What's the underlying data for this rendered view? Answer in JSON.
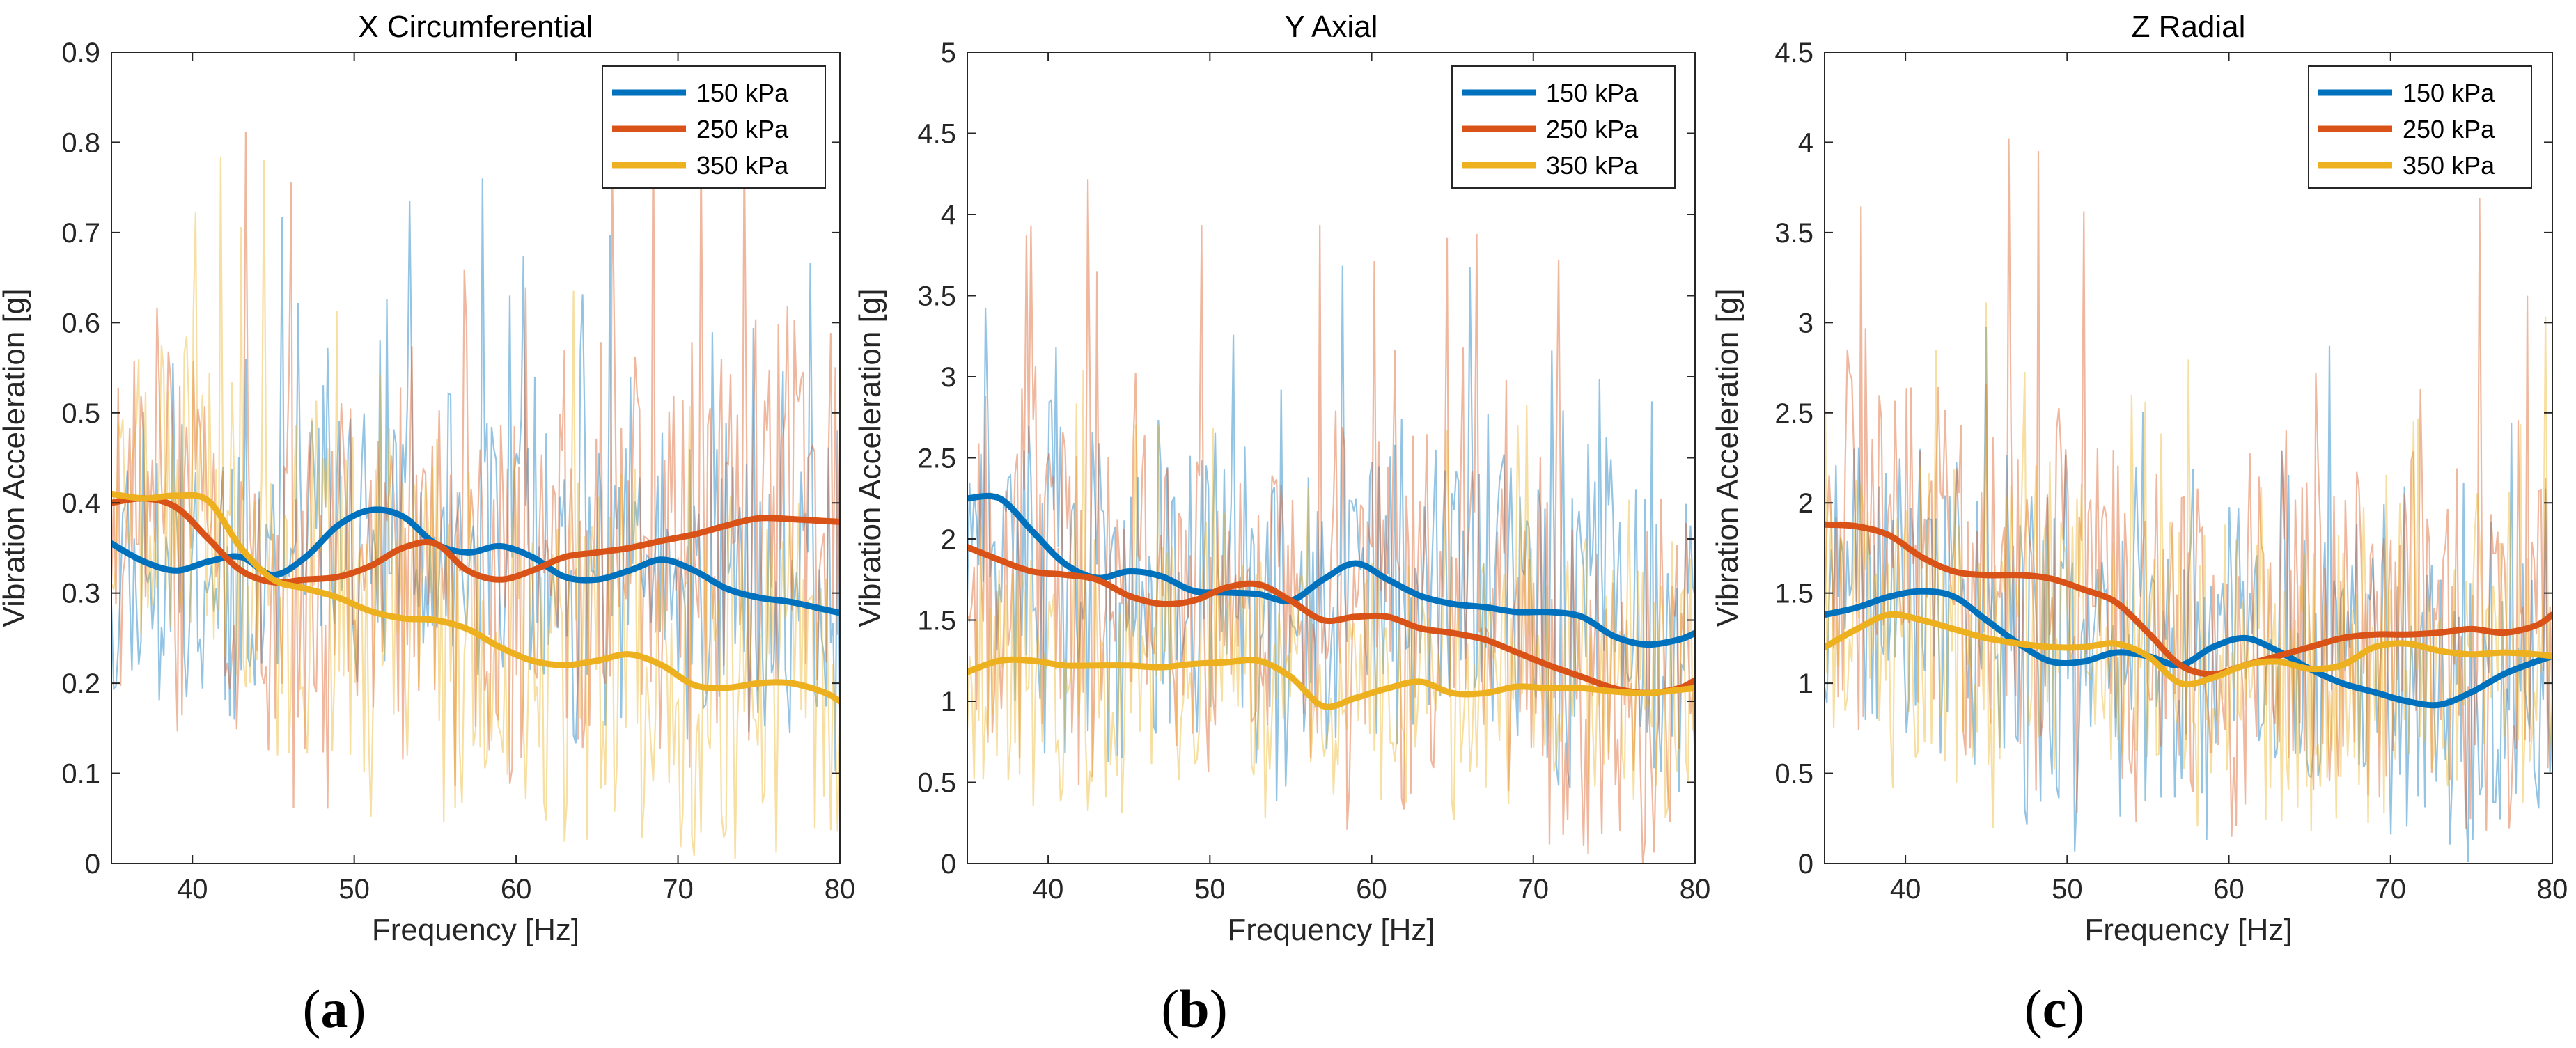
{
  "figure": {
    "panel_labels": [
      "(a)",
      "(b)",
      "(c)"
    ]
  },
  "colors": {
    "s150": "#0072BD",
    "s250": "#D95319",
    "s350": "#EDB120",
    "axis": "#262626",
    "tick_text": "#262626"
  },
  "chart_data": [
    {
      "type": "line",
      "title": "X Circumferential",
      "xlabel": "Frequency [Hz]",
      "ylabel": "Vibration Acceleration [g]",
      "xlim": [
        35,
        80
      ],
      "ylim": [
        0,
        0.9
      ],
      "xticks": [
        40,
        50,
        60,
        70,
        80
      ],
      "yticks": [
        0,
        0.1,
        0.2,
        0.3,
        0.4,
        0.5,
        0.6,
        0.7,
        0.8,
        0.9
      ],
      "ytick_labels": [
        "0",
        "0.1",
        "0.2",
        "0.3",
        "0.4",
        "0.5",
        "0.6",
        "0.7",
        "0.8",
        "0.9"
      ],
      "legend_position": "top-right",
      "smooth_x": [
        35,
        37,
        39,
        41,
        43,
        45,
        47,
        49,
        51,
        53,
        55,
        57,
        59,
        61,
        63,
        65,
        67,
        69,
        71,
        73,
        75,
        77,
        79,
        80
      ],
      "series": [
        {
          "name": "150 kPa",
          "color_key": "s150",
          "smooth": [
            0.355,
            0.335,
            0.325,
            0.335,
            0.34,
            0.32,
            0.34,
            0.375,
            0.392,
            0.385,
            0.355,
            0.345,
            0.352,
            0.34,
            0.318,
            0.315,
            0.325,
            0.337,
            0.325,
            0.305,
            0.295,
            0.29,
            0.282,
            0.278
          ],
          "raw_amp": 0.16,
          "raw_seed": 11
        },
        {
          "name": "250 kPa",
          "color_key": "s250",
          "smooth": [
            0.4,
            0.405,
            0.395,
            0.36,
            0.325,
            0.312,
            0.315,
            0.318,
            0.33,
            0.35,
            0.355,
            0.325,
            0.315,
            0.325,
            0.34,
            0.345,
            0.35,
            0.358,
            0.365,
            0.375,
            0.383,
            0.382,
            0.38,
            0.379
          ],
          "raw_amp": 0.2,
          "raw_seed": 23
        },
        {
          "name": "350 kPa",
          "color_key": "s350",
          "smooth": [
            0.41,
            0.405,
            0.408,
            0.402,
            0.35,
            0.315,
            0.305,
            0.295,
            0.28,
            0.272,
            0.27,
            0.26,
            0.24,
            0.225,
            0.22,
            0.225,
            0.232,
            0.22,
            0.198,
            0.195,
            0.2,
            0.2,
            0.19,
            0.18
          ],
          "raw_amp": 0.18,
          "raw_seed": 37
        }
      ]
    },
    {
      "type": "line",
      "title": "Y Axial",
      "xlabel": "Frequency [Hz]",
      "ylabel": "Vibration Acceleration [g]",
      "xlim": [
        35,
        80
      ],
      "ylim": [
        0,
        5
      ],
      "xticks": [
        40,
        50,
        60,
        70,
        80
      ],
      "yticks": [
        0,
        0.5,
        1,
        1.5,
        2,
        2.5,
        3,
        3.5,
        4,
        4.5,
        5
      ],
      "ytick_labels": [
        "0",
        "0.5",
        "1",
        "1.5",
        "2",
        "2.5",
        "3",
        "3.5",
        "4",
        "4.5",
        "5"
      ],
      "legend_position": "top-right",
      "smooth_x": [
        35,
        37,
        39,
        41,
        43,
        45,
        47,
        49,
        51,
        53,
        55,
        57,
        59,
        61,
        63,
        65,
        67,
        69,
        71,
        73,
        75,
        77,
        79,
        80
      ],
      "series": [
        {
          "name": "150 kPa",
          "color_key": "s150",
          "smooth": [
            2.25,
            2.25,
            2.05,
            1.85,
            1.76,
            1.8,
            1.77,
            1.68,
            1.67,
            1.66,
            1.62,
            1.75,
            1.85,
            1.75,
            1.65,
            1.6,
            1.58,
            1.55,
            1.55,
            1.52,
            1.4,
            1.35,
            1.38,
            1.42
          ],
          "raw_amp": 0.95,
          "raw_seed": 51
        },
        {
          "name": "250 kPa",
          "color_key": "s250",
          "smooth": [
            1.95,
            1.87,
            1.8,
            1.78,
            1.75,
            1.65,
            1.6,
            1.62,
            1.7,
            1.72,
            1.62,
            1.5,
            1.52,
            1.52,
            1.45,
            1.42,
            1.38,
            1.3,
            1.22,
            1.15,
            1.08,
            1.05,
            1.08,
            1.13
          ],
          "raw_amp": 1.0,
          "raw_seed": 67
        },
        {
          "name": "350 kPa",
          "color_key": "s350",
          "smooth": [
            1.18,
            1.25,
            1.25,
            1.22,
            1.22,
            1.22,
            1.21,
            1.23,
            1.24,
            1.25,
            1.15,
            0.97,
            1.02,
            1.08,
            1.12,
            1.05,
            1.05,
            1.09,
            1.08,
            1.08,
            1.06,
            1.05,
            1.07,
            1.08
          ],
          "raw_amp": 0.8,
          "raw_seed": 79
        }
      ]
    },
    {
      "type": "line",
      "title": "Z Radial",
      "xlabel": "Frequency [Hz]",
      "ylabel": "Vibration Acceleration [g]",
      "xlim": [
        35,
        80
      ],
      "ylim": [
        0,
        4.5
      ],
      "xticks": [
        40,
        50,
        60,
        70,
        80
      ],
      "yticks": [
        0,
        0.5,
        1,
        1.5,
        2,
        2.5,
        3,
        3.5,
        4,
        4.5
      ],
      "ytick_labels": [
        "0",
        "0.5",
        "1",
        "1.5",
        "2",
        "2.5",
        "3",
        "3.5",
        "4",
        "4.5"
      ],
      "legend_position": "top-right",
      "smooth_x": [
        35,
        37,
        39,
        41,
        43,
        45,
        47,
        49,
        51,
        53,
        55,
        57,
        59,
        61,
        63,
        65,
        67,
        69,
        71,
        73,
        75,
        77,
        79,
        80
      ],
      "series": [
        {
          "name": "150 kPa",
          "color_key": "s150",
          "smooth": [
            1.38,
            1.42,
            1.48,
            1.51,
            1.48,
            1.35,
            1.22,
            1.12,
            1.12,
            1.17,
            1.15,
            1.1,
            1.2,
            1.25,
            1.18,
            1.08,
            1.0,
            0.95,
            0.9,
            0.88,
            0.95,
            1.05,
            1.12,
            1.15
          ],
          "raw_amp": 0.85,
          "raw_seed": 91
        },
        {
          "name": "250 kPa",
          "color_key": "s250",
          "smooth": [
            1.88,
            1.87,
            1.82,
            1.7,
            1.62,
            1.6,
            1.6,
            1.58,
            1.52,
            1.45,
            1.28,
            1.1,
            1.05,
            1.1,
            1.15,
            1.2,
            1.25,
            1.27,
            1.27,
            1.28,
            1.3,
            1.28,
            1.32,
            1.38
          ],
          "raw_amp": 0.95,
          "raw_seed": 103
        },
        {
          "name": "350 kPa",
          "color_key": "s350",
          "smooth": [
            1.2,
            1.3,
            1.38,
            1.35,
            1.3,
            1.25,
            1.22,
            1.2,
            1.2,
            1.22,
            1.15,
            1.0,
            1.03,
            1.1,
            1.12,
            1.08,
            1.1,
            1.2,
            1.22,
            1.18,
            1.16,
            1.17,
            1.16,
            1.15
          ],
          "raw_amp": 0.8,
          "raw_seed": 117
        }
      ]
    }
  ]
}
